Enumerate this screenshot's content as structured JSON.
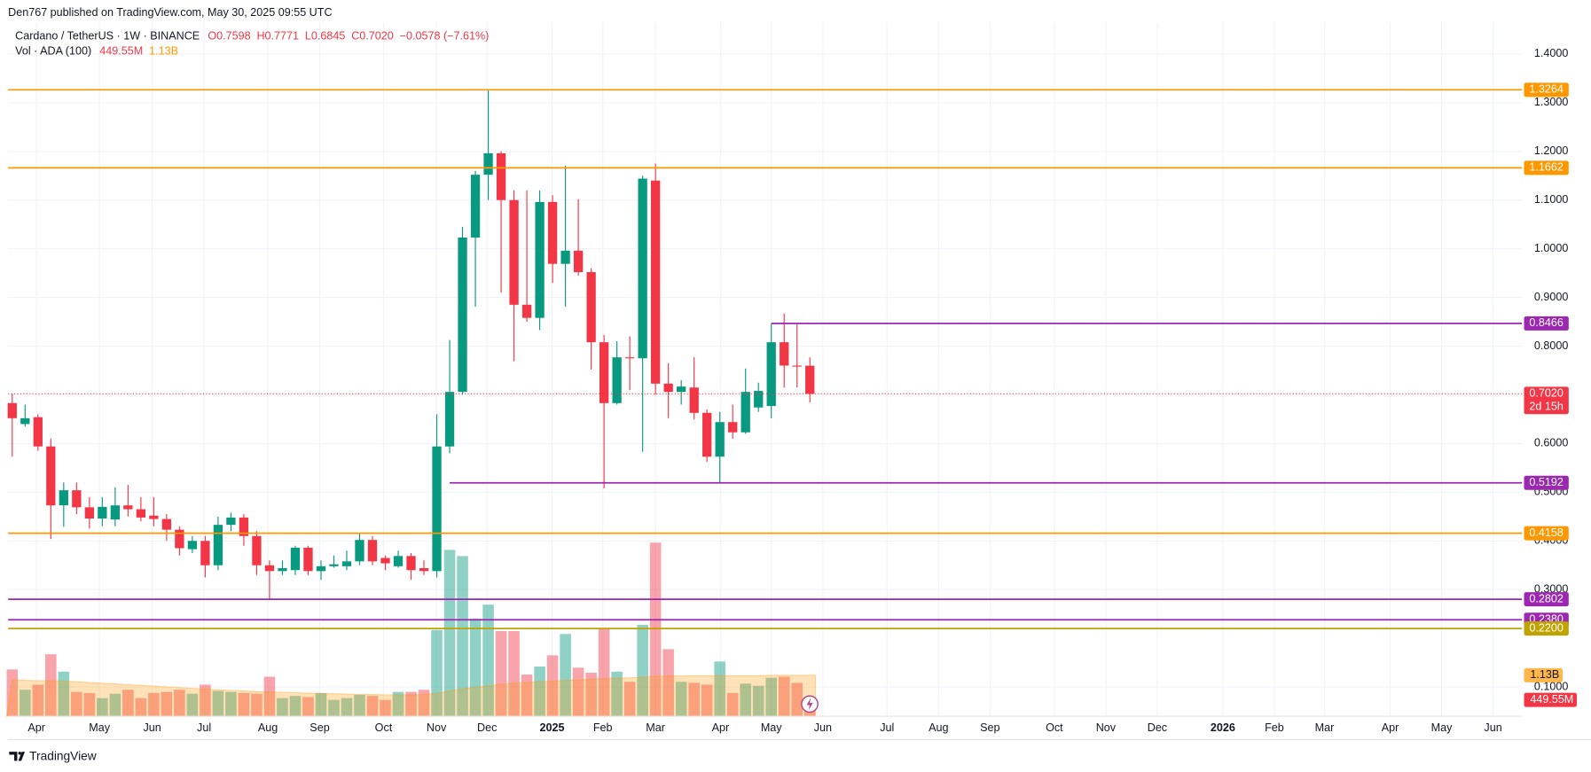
{
  "chart_data": {
    "type": "candlestick",
    "header": "Den767 published on TradingView.com, May 30, 2025 09:55 UTC",
    "title": "Cardano / TetherUS · 1W · BINANCE",
    "ohlc_legend": [
      "O0.7598",
      "H0.7771",
      "L0.6845",
      "C0.7020",
      "−0.0578 (−7.61%)"
    ],
    "up_color": "#089981",
    "down_color": "#f23645",
    "open": [
      0.683,
      0.64,
      0.654,
      0.594,
      0.473,
      0.504,
      0.469,
      0.446,
      0.444,
      0.473,
      0.465,
      0.452,
      0.445,
      0.423,
      0.383,
      0.4,
      0.35,
      0.433,
      0.448,
      0.41,
      0.35,
      0.338,
      0.34,
      0.386,
      0.338,
      0.348,
      0.348,
      0.358,
      0.402,
      0.365,
      0.348,
      0.369,
      0.344,
      0.338,
      0.594,
      0.706,
      1.023,
      1.152,
      1.196,
      1.1,
      0.885,
      0.858,
      1.096,
      0.969,
      0.996,
      0.952,
      0.808,
      0.683,
      0.777,
      0.775,
      1.14,
      0.723,
      0.706,
      0.715,
      0.663,
      0.573,
      0.644,
      0.623,
      0.674,
      0.677,
      0.808,
      0.76,
      0.7598
    ],
    "high": [
      0.702,
      0.68,
      0.66,
      0.61,
      0.52,
      0.52,
      0.49,
      0.49,
      0.51,
      0.515,
      0.49,
      0.49,
      0.455,
      0.43,
      0.41,
      0.41,
      0.45,
      0.458,
      0.455,
      0.42,
      0.36,
      0.36,
      0.39,
      0.39,
      0.36,
      0.37,
      0.38,
      0.415,
      0.41,
      0.37,
      0.38,
      0.375,
      0.36,
      0.66,
      0.8125,
      1.045,
      1.16,
      1.326,
      1.2,
      1.12,
      1.12,
      1.12,
      1.11,
      1.171,
      1.102,
      0.96,
      0.823,
      0.81,
      0.82,
      1.15,
      1.175,
      0.765,
      0.73,
      0.777,
      0.67,
      0.665,
      0.68,
      0.754,
      0.725,
      0.846,
      0.867,
      0.846,
      0.7771
    ],
    "low": [
      0.573,
      0.635,
      0.585,
      0.404,
      0.429,
      0.455,
      0.425,
      0.43,
      0.43,
      0.45,
      0.44,
      0.43,
      0.4,
      0.37,
      0.375,
      0.325,
      0.34,
      0.42,
      0.39,
      0.33,
      0.281,
      0.33,
      0.33,
      0.33,
      0.32,
      0.345,
      0.34,
      0.35,
      0.35,
      0.34,
      0.345,
      0.32,
      0.33,
      0.325,
      0.58,
      0.7,
      0.881,
      1.1,
      0.91,
      0.769,
      0.85,
      0.833,
      0.93,
      0.881,
      0.945,
      0.752,
      0.508,
      0.68,
      0.71,
      0.583,
      0.7,
      0.652,
      0.68,
      0.65,
      0.5625,
      0.519,
      0.61,
      0.62,
      0.665,
      0.652,
      0.715,
      0.715,
      0.6845
    ],
    "close": [
      0.652,
      0.652,
      0.594,
      0.473,
      0.504,
      0.469,
      0.446,
      0.47,
      0.473,
      0.465,
      0.448,
      0.445,
      0.423,
      0.385,
      0.4,
      0.35,
      0.433,
      0.448,
      0.41,
      0.35,
      0.338,
      0.344,
      0.386,
      0.338,
      0.348,
      0.352,
      0.358,
      0.402,
      0.358,
      0.354,
      0.369,
      0.34,
      0.338,
      0.594,
      0.706,
      1.023,
      1.152,
      1.196,
      1.1,
      0.885,
      0.858,
      1.096,
      0.969,
      0.996,
      0.952,
      0.808,
      0.683,
      0.777,
      0.775,
      1.144,
      0.723,
      0.706,
      0.717,
      0.663,
      0.573,
      0.644,
      0.623,
      0.706,
      0.708,
      0.808,
      0.76,
      0.759,
      0.702
    ],
    "volume": {
      "name": "Vol · ADA (100)",
      "axis": "y2",
      "values": [
        1.29,
        0.73,
        0.87,
        1.71,
        1.23,
        0.67,
        0.64,
        0.5,
        0.62,
        0.73,
        0.5,
        0.64,
        0.67,
        0.73,
        0.62,
        0.87,
        0.7,
        0.67,
        0.64,
        0.62,
        1.09,
        0.5,
        0.56,
        0.53,
        0.64,
        0.45,
        0.5,
        0.59,
        0.56,
        0.45,
        0.67,
        0.67,
        0.73,
        2.38,
        4.59,
        4.42,
        2.69,
        3.08,
        2.35,
        2.35,
        1.15,
        1.37,
        1.68,
        2.27,
        1.34,
        1.2,
        2.41,
        1.23,
        0.95,
        2.52,
        4.79,
        1.85,
        0.95,
        0.92,
        0.87,
        1.51,
        0.64,
        0.9,
        0.84,
        1.06,
        1.09,
        0.92,
        0.44955
      ],
      "last_value_label": "449.55M",
      "label_color": "#f23645"
    },
    "volume_ma": {
      "axis": "y2",
      "color": "#ff9800",
      "values": [
        1.0,
        0.99,
        0.98,
        0.98,
        0.97,
        0.95,
        0.93,
        0.91,
        0.89,
        0.87,
        0.85,
        0.83,
        0.81,
        0.79,
        0.77,
        0.75,
        0.73,
        0.71,
        0.7,
        0.68,
        0.67,
        0.66,
        0.65,
        0.64,
        0.63,
        0.62,
        0.61,
        0.6,
        0.6,
        0.59,
        0.59,
        0.59,
        0.6,
        0.63,
        0.7,
        0.76,
        0.8,
        0.84,
        0.88,
        0.91,
        0.93,
        0.95,
        0.97,
        0.99,
        1.0,
        1.02,
        1.04,
        1.05,
        1.06,
        1.08,
        1.1,
        1.11,
        1.11,
        1.12,
        1.12,
        1.12,
        1.12,
        1.12,
        1.12,
        1.13,
        1.13,
        1.13,
        1.13
      ],
      "last_value_label": "1.13B"
    },
    "levels": [
      {
        "value": 1.3264,
        "label": "1.3264",
        "color": "#ff9800"
      },
      {
        "value": 1.1662,
        "label": "1.1662",
        "color": "#ff9800"
      },
      {
        "value": 0.8466,
        "label": "0.8466",
        "color": "#9c27b0"
      },
      {
        "value": 0.5192,
        "label": "0.5192",
        "color": "#9c27b0"
      },
      {
        "value": 0.4158,
        "label": "0.4158",
        "color": "#ff9800"
      },
      {
        "value": 0.2802,
        "label": "0.2802",
        "color": "#9c27b0"
      },
      {
        "value": 0.238,
        "label": "0.2380",
        "color": "#9c27b0"
      },
      {
        "value": 0.22,
        "label": "0.2200",
        "color": "#bfa300"
      }
    ],
    "price_label": {
      "value": 0.702,
      "label": "0.7020",
      "countdown": "2d 15h",
      "color": "#f23645"
    },
    "ylim": [
      0.04,
      1.465
    ],
    "yticks": [
      {
        "value": 0.1,
        "label": "0.1000"
      },
      {
        "value": 0.3,
        "label": "0.3000"
      },
      {
        "value": 0.4,
        "label": "0.4000"
      },
      {
        "value": 0.5,
        "label": "0.5000"
      },
      {
        "value": 0.6,
        "label": "0.6000"
      },
      {
        "value": 0.8,
        "label": "0.8000"
      },
      {
        "value": 0.9,
        "label": "0.9000"
      },
      {
        "value": 1.0,
        "label": "1.0000"
      },
      {
        "value": 1.1,
        "label": "1.1000"
      },
      {
        "value": 1.2,
        "label": "1.2000"
      },
      {
        "value": 1.3,
        "label": "1.3000"
      },
      {
        "value": 1.4,
        "label": "1.4000"
      }
    ],
    "y2lim": [
      0,
      19.15
    ],
    "xlim": [
      -0.32,
      117.35
    ],
    "xticks": [
      {
        "value": 1.89,
        "label": "Apr"
      },
      {
        "value": 6.78,
        "label": "May"
      },
      {
        "value": 10.88,
        "label": "Jun"
      },
      {
        "value": 14.91,
        "label": "Jul"
      },
      {
        "value": 19.87,
        "label": "Aug"
      },
      {
        "value": 23.9,
        "label": "Sep"
      },
      {
        "value": 28.86,
        "label": "Oct"
      },
      {
        "value": 32.97,
        "label": "Nov"
      },
      {
        "value": 36.91,
        "label": "Dec"
      },
      {
        "value": 41.96,
        "label": "2025"
      },
      {
        "value": 45.9,
        "label": "Feb"
      },
      {
        "value": 50,
        "label": "Mar"
      },
      {
        "value": 55.05,
        "label": "Apr"
      },
      {
        "value": 59,
        "label": "May"
      },
      {
        "value": 63.01,
        "label": "Jun"
      },
      {
        "value": 68,
        "label": "Jul"
      },
      {
        "value": 72,
        "label": "Aug"
      },
      {
        "value": 76,
        "label": "Sep"
      },
      {
        "value": 81,
        "label": "Oct"
      },
      {
        "value": 85,
        "label": "Nov"
      },
      {
        "value": 89,
        "label": "Dec"
      },
      {
        "value": 94.1,
        "label": "2026"
      },
      {
        "value": 98.1,
        "label": "Feb"
      },
      {
        "value": 102,
        "label": "Mar"
      },
      {
        "value": 107.1,
        "label": "Apr"
      },
      {
        "value": 111.1,
        "label": "May"
      },
      {
        "value": 115.1,
        "label": "Jun"
      }
    ],
    "grid": true,
    "footer": "TradingView"
  }
}
